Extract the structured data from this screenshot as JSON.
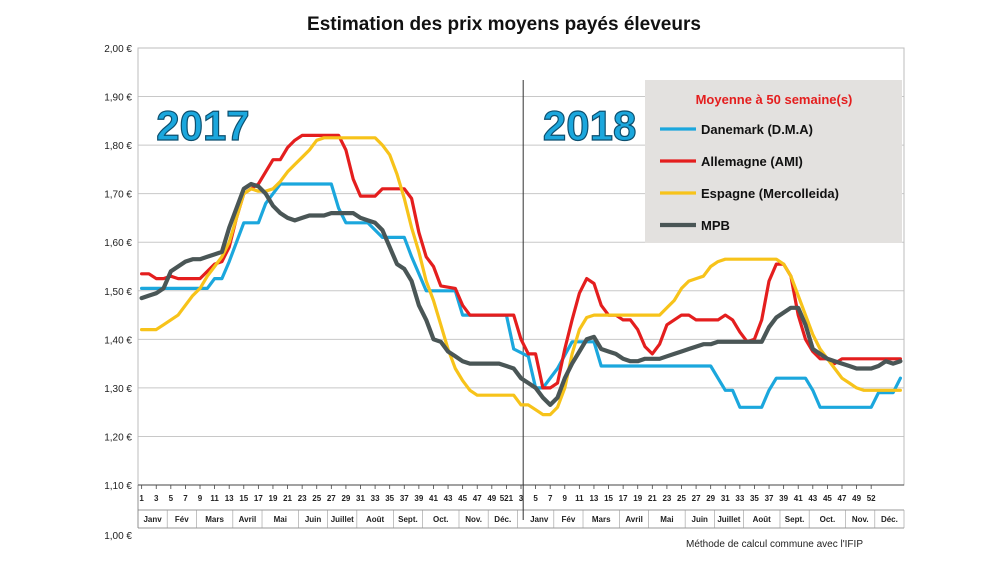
{
  "chart_data": {
    "type": "line",
    "title": "Estimation des prix moyens payés éleveurs",
    "y_ticks": [
      "1,00 €",
      "1,10 €",
      "1,20 €",
      "1,30 €",
      "1,40 €",
      "1,50 €",
      "1,60 €",
      "1,70 €",
      "1,80 €",
      "1,90 €",
      "2,00 €"
    ],
    "ylim": [
      1.0,
      2.0
    ],
    "x_week_labels": [
      "1",
      "3",
      "5",
      "7",
      "9",
      "11",
      "13",
      "15",
      "17",
      "19",
      "21",
      "23",
      "25",
      "27",
      "29",
      "31",
      "33",
      "35",
      "37",
      "39",
      "41",
      "43",
      "45",
      "47",
      "49",
      "521",
      "3",
      "5",
      "7",
      "9",
      "11",
      "13",
      "15",
      "17",
      "19",
      "21",
      "23",
      "25",
      "27",
      "29",
      "31",
      "33",
      "35",
      "37",
      "39",
      "41",
      "43",
      "45",
      "47",
      "49",
      "52"
    ],
    "x_month_labels": [
      "Janv",
      "Fév",
      "Mars",
      "Avril",
      "Mai",
      "Juin",
      "Juillet",
      "Août",
      "Sept.",
      "Oct.",
      "Nov.",
      "Déc.",
      "Janv",
      "Fév",
      "Mars",
      "Avril",
      "Mai",
      "Juin",
      "Juillet",
      "Août",
      "Sept.",
      "Oct.",
      "Nov.",
      "Déc."
    ],
    "year_labels": [
      "2017",
      "2018"
    ],
    "legend": {
      "title": "Moyenne à  50 semaine(s)",
      "position": "top-right"
    },
    "grid": true,
    "series": [
      {
        "name": "Danemark (D.M.A)",
        "color": "#1ba7dd",
        "points": [
          [
            1,
            1.505
          ],
          [
            3,
            1.505
          ],
          [
            6,
            1.505
          ],
          [
            9,
            1.505
          ],
          [
            10,
            1.505
          ],
          [
            11,
            1.525
          ],
          [
            12,
            1.525
          ],
          [
            13,
            1.56
          ],
          [
            14,
            1.6
          ],
          [
            15,
            1.64
          ],
          [
            17,
            1.64
          ],
          [
            18,
            1.68
          ],
          [
            19,
            1.7
          ],
          [
            20,
            1.72
          ],
          [
            27,
            1.72
          ],
          [
            28,
            1.67
          ],
          [
            29,
            1.64
          ],
          [
            32,
            1.64
          ],
          [
            34,
            1.61
          ],
          [
            37,
            1.61
          ],
          [
            38,
            1.57
          ],
          [
            40,
            1.5
          ],
          [
            42,
            1.5
          ],
          [
            44,
            1.5
          ],
          [
            45,
            1.45
          ],
          [
            51,
            1.45
          ],
          [
            52,
            1.38
          ],
          [
            54,
            1.365
          ],
          [
            55,
            1.3
          ],
          [
            56,
            1.3
          ],
          [
            58,
            1.34
          ],
          [
            60,
            1.395
          ],
          [
            63,
            1.395
          ],
          [
            64,
            1.345
          ],
          [
            72,
            1.345
          ],
          [
            73,
            1.345
          ],
          [
            78,
            1.345
          ],
          [
            79,
            1.345
          ],
          [
            80,
            1.32
          ],
          [
            81,
            1.295
          ],
          [
            82,
            1.295
          ],
          [
            83,
            1.26
          ],
          [
            86,
            1.26
          ],
          [
            87,
            1.295
          ],
          [
            88,
            1.32
          ],
          [
            92,
            1.32
          ],
          [
            93,
            1.295
          ],
          [
            94,
            1.26
          ],
          [
            101,
            1.26
          ],
          [
            102,
            1.29
          ],
          [
            104,
            1.29
          ],
          [
            105,
            1.32
          ]
        ]
      },
      {
        "name": "Allemagne (AMI)",
        "color": "#e41e1e",
        "points": [
          [
            1,
            1.535
          ],
          [
            2,
            1.535
          ],
          [
            3,
            1.525
          ],
          [
            4,
            1.525
          ],
          [
            5,
            1.53
          ],
          [
            6,
            1.525
          ],
          [
            9,
            1.525
          ],
          [
            10,
            1.54
          ],
          [
            11,
            1.555
          ],
          [
            12,
            1.56
          ],
          [
            13,
            1.59
          ],
          [
            14,
            1.65
          ],
          [
            15,
            1.7
          ],
          [
            16,
            1.71
          ],
          [
            17,
            1.72
          ],
          [
            18,
            1.745
          ],
          [
            19,
            1.77
          ],
          [
            20,
            1.77
          ],
          [
            21,
            1.795
          ],
          [
            22,
            1.81
          ],
          [
            23,
            1.82
          ],
          [
            28,
            1.82
          ],
          [
            29,
            1.79
          ],
          [
            30,
            1.73
          ],
          [
            31,
            1.695
          ],
          [
            32,
            1.695
          ],
          [
            33,
            1.695
          ],
          [
            34,
            1.71
          ],
          [
            37,
            1.71
          ],
          [
            38,
            1.69
          ],
          [
            39,
            1.62
          ],
          [
            40,
            1.57
          ],
          [
            41,
            1.55
          ],
          [
            42,
            1.51
          ],
          [
            44,
            1.505
          ],
          [
            45,
            1.47
          ],
          [
            46,
            1.45
          ],
          [
            52,
            1.45
          ],
          [
            53,
            1.4
          ],
          [
            54,
            1.37
          ],
          [
            55,
            1.37
          ],
          [
            56,
            1.3
          ],
          [
            57,
            1.3
          ],
          [
            58,
            1.31
          ],
          [
            59,
            1.38
          ],
          [
            60,
            1.44
          ],
          [
            61,
            1.495
          ],
          [
            62,
            1.525
          ],
          [
            63,
            1.515
          ],
          [
            64,
            1.47
          ],
          [
            65,
            1.45
          ],
          [
            66,
            1.45
          ],
          [
            67,
            1.44
          ],
          [
            68,
            1.44
          ],
          [
            69,
            1.42
          ],
          [
            70,
            1.385
          ],
          [
            71,
            1.37
          ],
          [
            72,
            1.39
          ],
          [
            73,
            1.43
          ],
          [
            74,
            1.44
          ],
          [
            75,
            1.45
          ],
          [
            76,
            1.45
          ],
          [
            77,
            1.44
          ],
          [
            80,
            1.44
          ],
          [
            81,
            1.45
          ],
          [
            82,
            1.44
          ],
          [
            83,
            1.415
          ],
          [
            84,
            1.395
          ],
          [
            85,
            1.4
          ],
          [
            86,
            1.44
          ],
          [
            87,
            1.52
          ],
          [
            88,
            1.555
          ],
          [
            89,
            1.555
          ],
          [
            90,
            1.53
          ],
          [
            91,
            1.45
          ],
          [
            92,
            1.4
          ],
          [
            93,
            1.375
          ],
          [
            94,
            1.36
          ],
          [
            95,
            1.36
          ],
          [
            96,
            1.35
          ],
          [
            97,
            1.36
          ],
          [
            105,
            1.36
          ]
        ]
      },
      {
        "name": "Espagne (Mercolleida)",
        "color": "#f7c31a",
        "points": [
          [
            1,
            1.42
          ],
          [
            3,
            1.42
          ],
          [
            4,
            1.43
          ],
          [
            5,
            1.44
          ],
          [
            6,
            1.45
          ],
          [
            7,
            1.47
          ],
          [
            8,
            1.49
          ],
          [
            9,
            1.505
          ],
          [
            10,
            1.53
          ],
          [
            11,
            1.55
          ],
          [
            12,
            1.57
          ],
          [
            13,
            1.6
          ],
          [
            14,
            1.65
          ],
          [
            15,
            1.7
          ],
          [
            16,
            1.71
          ],
          [
            17,
            1.705
          ],
          [
            18,
            1.705
          ],
          [
            19,
            1.71
          ],
          [
            20,
            1.725
          ],
          [
            21,
            1.745
          ],
          [
            22,
            1.76
          ],
          [
            23,
            1.775
          ],
          [
            24,
            1.79
          ],
          [
            25,
            1.81
          ],
          [
            26,
            1.815
          ],
          [
            33,
            1.815
          ],
          [
            34,
            1.8
          ],
          [
            35,
            1.78
          ],
          [
            36,
            1.74
          ],
          [
            37,
            1.69
          ],
          [
            38,
            1.63
          ],
          [
            39,
            1.58
          ],
          [
            40,
            1.52
          ],
          [
            41,
            1.48
          ],
          [
            42,
            1.43
          ],
          [
            43,
            1.38
          ],
          [
            44,
            1.34
          ],
          [
            45,
            1.315
          ],
          [
            46,
            1.295
          ],
          [
            47,
            1.285
          ],
          [
            52,
            1.285
          ],
          [
            53,
            1.265
          ],
          [
            54,
            1.265
          ],
          [
            55,
            1.255
          ],
          [
            56,
            1.245
          ],
          [
            57,
            1.245
          ],
          [
            58,
            1.26
          ],
          [
            59,
            1.3
          ],
          [
            60,
            1.37
          ],
          [
            61,
            1.42
          ],
          [
            62,
            1.445
          ],
          [
            63,
            1.45
          ],
          [
            72,
            1.45
          ],
          [
            73,
            1.465
          ],
          [
            74,
            1.48
          ],
          [
            75,
            1.505
          ],
          [
            76,
            1.52
          ],
          [
            77,
            1.525
          ],
          [
            78,
            1.53
          ],
          [
            79,
            1.55
          ],
          [
            80,
            1.56
          ],
          [
            81,
            1.565
          ],
          [
            88,
            1.565
          ],
          [
            89,
            1.555
          ],
          [
            90,
            1.53
          ],
          [
            91,
            1.49
          ],
          [
            92,
            1.45
          ],
          [
            93,
            1.41
          ],
          [
            94,
            1.38
          ],
          [
            95,
            1.36
          ],
          [
            96,
            1.34
          ],
          [
            97,
            1.32
          ],
          [
            98,
            1.31
          ],
          [
            99,
            1.3
          ],
          [
            100,
            1.295
          ],
          [
            105,
            1.295
          ]
        ]
      },
      {
        "name": "MPB",
        "color": "#4a5656",
        "points": [
          [
            1,
            1.485
          ],
          [
            2,
            1.49
          ],
          [
            3,
            1.495
          ],
          [
            4,
            1.505
          ],
          [
            5,
            1.54
          ],
          [
            6,
            1.55
          ],
          [
            7,
            1.56
          ],
          [
            8,
            1.565
          ],
          [
            9,
            1.565
          ],
          [
            10,
            1.57
          ],
          [
            11,
            1.575
          ],
          [
            12,
            1.58
          ],
          [
            13,
            1.63
          ],
          [
            14,
            1.67
          ],
          [
            15,
            1.71
          ],
          [
            16,
            1.72
          ],
          [
            17,
            1.715
          ],
          [
            18,
            1.7
          ],
          [
            19,
            1.675
          ],
          [
            20,
            1.66
          ],
          [
            21,
            1.65
          ],
          [
            22,
            1.645
          ],
          [
            23,
            1.65
          ],
          [
            24,
            1.655
          ],
          [
            25,
            1.655
          ],
          [
            26,
            1.655
          ],
          [
            27,
            1.66
          ],
          [
            30,
            1.66
          ],
          [
            31,
            1.65
          ],
          [
            32,
            1.645
          ],
          [
            33,
            1.64
          ],
          [
            34,
            1.625
          ],
          [
            35,
            1.59
          ],
          [
            36,
            1.555
          ],
          [
            37,
            1.545
          ],
          [
            38,
            1.52
          ],
          [
            39,
            1.47
          ],
          [
            40,
            1.44
          ],
          [
            41,
            1.4
          ],
          [
            42,
            1.395
          ],
          [
            43,
            1.375
          ],
          [
            44,
            1.365
          ],
          [
            45,
            1.355
          ],
          [
            46,
            1.35
          ],
          [
            50,
            1.35
          ],
          [
            51,
            1.345
          ],
          [
            52,
            1.34
          ],
          [
            53,
            1.32
          ],
          [
            54,
            1.31
          ],
          [
            55,
            1.3
          ],
          [
            56,
            1.28
          ],
          [
            57,
            1.265
          ],
          [
            58,
            1.28
          ],
          [
            59,
            1.32
          ],
          [
            60,
            1.35
          ],
          [
            61,
            1.375
          ],
          [
            62,
            1.4
          ],
          [
            63,
            1.405
          ],
          [
            64,
            1.38
          ],
          [
            65,
            1.375
          ],
          [
            66,
            1.37
          ],
          [
            67,
            1.36
          ],
          [
            68,
            1.355
          ],
          [
            69,
            1.355
          ],
          [
            70,
            1.36
          ],
          [
            72,
            1.36
          ],
          [
            73,
            1.365
          ],
          [
            74,
            1.37
          ],
          [
            75,
            1.375
          ],
          [
            76,
            1.38
          ],
          [
            77,
            1.385
          ],
          [
            78,
            1.39
          ],
          [
            79,
            1.39
          ],
          [
            80,
            1.395
          ],
          [
            82,
            1.395
          ],
          [
            84,
            1.395
          ],
          [
            86,
            1.395
          ],
          [
            87,
            1.425
          ],
          [
            88,
            1.445
          ],
          [
            89,
            1.455
          ],
          [
            90,
            1.465
          ],
          [
            91,
            1.465
          ],
          [
            92,
            1.43
          ],
          [
            93,
            1.38
          ],
          [
            94,
            1.37
          ],
          [
            95,
            1.36
          ],
          [
            96,
            1.355
          ],
          [
            97,
            1.35
          ],
          [
            98,
            1.345
          ],
          [
            99,
            1.34
          ],
          [
            101,
            1.34
          ],
          [
            102,
            1.345
          ],
          [
            103,
            1.355
          ],
          [
            104,
            1.35
          ],
          [
            105,
            1.355
          ]
        ]
      }
    ]
  },
  "footnote": "Méthode de calcul commune avec l'IFIP"
}
